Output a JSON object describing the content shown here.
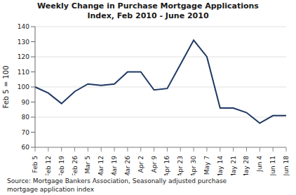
{
  "chart_data": {
    "type": "line",
    "title": "Weekly Change in Purchase Mortgage Applications",
    "subtitle": "Index, Feb 2010 - June 2010",
    "y_label": "Feb 5 = 100",
    "annotation": "Source: Mortgage Bankers Association, Seasonally adjusted purchase\nmortgage application index",
    "categories": [
      "Feb 5",
      "Feb 12",
      "Feb 19",
      "Feb 26",
      "Mar 5",
      "Mar 12",
      "Mar 19",
      "Mar 26",
      "Apr 2",
      "Apr 9",
      "Apr 16",
      "Apr 23",
      "Apr 30",
      "May 7",
      "May 14",
      "May 21",
      "May 28",
      "Jun 4",
      "Jun 11",
      "Jun 18"
    ],
    "values": [
      100,
      96,
      89,
      97,
      102,
      101,
      102,
      110,
      110,
      98,
      99,
      115,
      131,
      120,
      86,
      86,
      83,
      76,
      81,
      81
    ],
    "color": "#1f3864",
    "ylim": [
      60,
      140
    ],
    "yticks": [
      60,
      70,
      80,
      90,
      100,
      110,
      120,
      130,
      140
    ],
    "grid": true
  }
}
